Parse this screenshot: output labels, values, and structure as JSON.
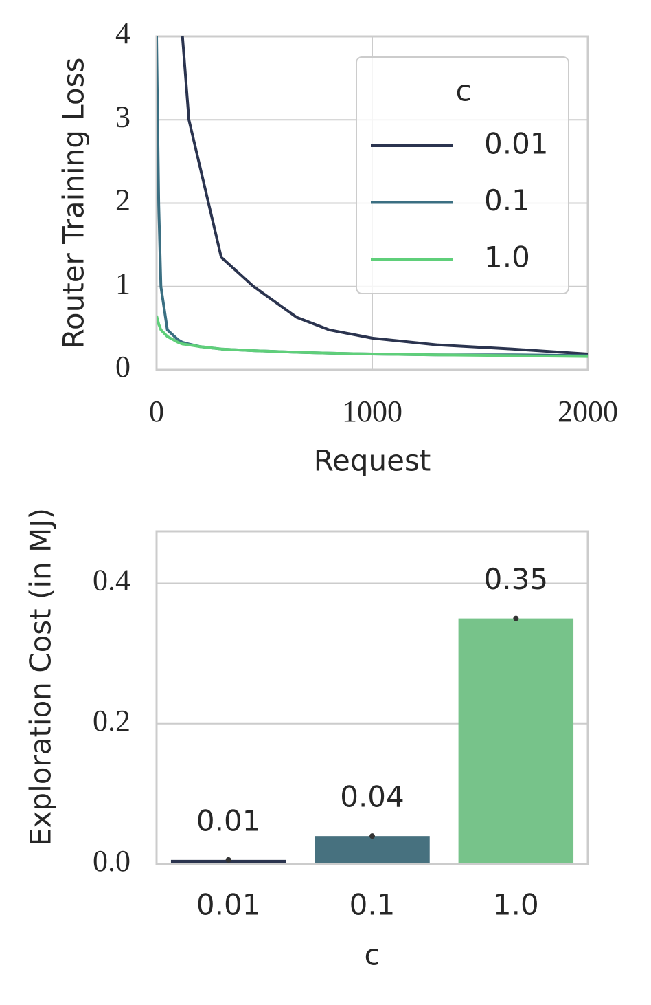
{
  "chart_data": [
    {
      "type": "line",
      "xlabel": "Request",
      "ylabel": "Router Training Loss",
      "x": [
        0,
        10,
        20,
        50,
        100,
        120,
        150,
        200,
        300,
        450,
        650,
        800,
        1000,
        1300,
        1650,
        2000
      ],
      "series": [
        {
          "name": "0.01",
          "color": "#2b344f",
          "values": [
            null,
            null,
            null,
            null,
            null,
            4.0,
            3.0,
            2.45,
            1.35,
            1.0,
            0.63,
            0.48,
            0.38,
            0.3,
            0.25,
            0.19
          ]
        },
        {
          "name": "0.1",
          "color": "#3b6f82",
          "values": [
            4.0,
            2.0,
            1.0,
            0.48,
            0.36,
            0.33,
            0.31,
            0.28,
            0.25,
            0.23,
            0.21,
            0.2,
            0.19,
            0.18,
            0.18,
            0.17
          ]
        },
        {
          "name": "1.0",
          "color": "#5fcf7a",
          "values": [
            0.65,
            0.55,
            0.48,
            0.4,
            0.33,
            0.31,
            0.3,
            0.28,
            0.25,
            0.23,
            0.21,
            0.2,
            0.19,
            0.18,
            0.17,
            0.16
          ]
        }
      ],
      "legend_title": "c",
      "legend": "upper right",
      "xlim": [
        0,
        2000
      ],
      "xticks": [
        0,
        1000,
        2000
      ],
      "ylim": [
        0,
        4
      ],
      "yticks": [
        0,
        1,
        2,
        3,
        4
      ],
      "grid": true
    },
    {
      "type": "bar",
      "xlabel": "c",
      "ylabel": "Exploration Cost (in MJ)",
      "categories": [
        "0.01",
        "0.1",
        "1.0"
      ],
      "values": [
        0.006,
        0.04,
        0.35
      ],
      "value_labels": [
        "0.01",
        "0.04",
        "0.35"
      ],
      "colors": [
        "#2b344f",
        "#47717f",
        "#77c38a"
      ],
      "ylim": [
        0,
        0.474
      ],
      "yticks": [
        {
          "value": 0,
          "label": "0.0"
        },
        {
          "value": 0.2,
          "label": "0.2"
        },
        {
          "value": 0.4,
          "label": "0.4"
        }
      ],
      "grid": true
    }
  ]
}
